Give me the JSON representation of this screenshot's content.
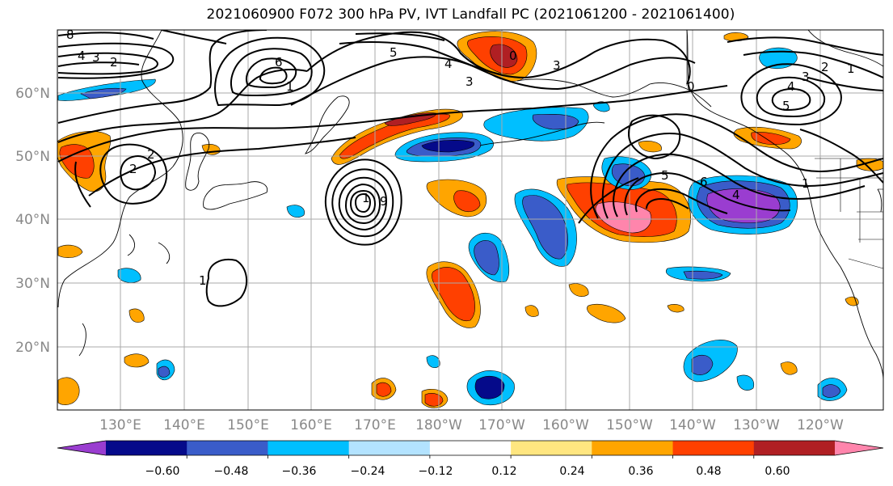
{
  "figure": {
    "title": "2021060900 F072 300 hPa PV, IVT Landfall PC (2021061200 - 2021061400)"
  },
  "axes": {
    "lat_labels": [
      "60°N",
      "50°N",
      "40°N",
      "30°N",
      "20°N"
    ],
    "lon_labels": [
      "130°E",
      "140°E",
      "150°E",
      "160°E",
      "170°E",
      "180°W",
      "170°W",
      "160°W",
      "150°W",
      "140°W",
      "130°W",
      "120°W"
    ],
    "gridlines": true
  },
  "colorbar": {
    "tick_labels": [
      "−0.60",
      "−0.48",
      "−0.36",
      "−0.24",
      "−0.12",
      "0.12",
      "0.24",
      "0.36",
      "0.48",
      "0.60"
    ],
    "colors": [
      "#9a3dd0",
      "#050a8a",
      "#3a5cc9",
      "#00bfff",
      "#b3e3ff",
      "#ffffff",
      "#ffe680",
      "#ffa500",
      "#ff4000",
      "#b01f23",
      "#ff85ac"
    ],
    "extend": "both"
  },
  "contour_labels": [
    "8",
    "4",
    "3",
    "2",
    "6",
    "5",
    "4",
    "3",
    "3",
    "1",
    "2",
    "0",
    "4",
    "3",
    "2",
    "1",
    "5",
    "2",
    "1",
    "9",
    "5",
    "6",
    "4",
    "1",
    "0",
    "1"
  ]
}
